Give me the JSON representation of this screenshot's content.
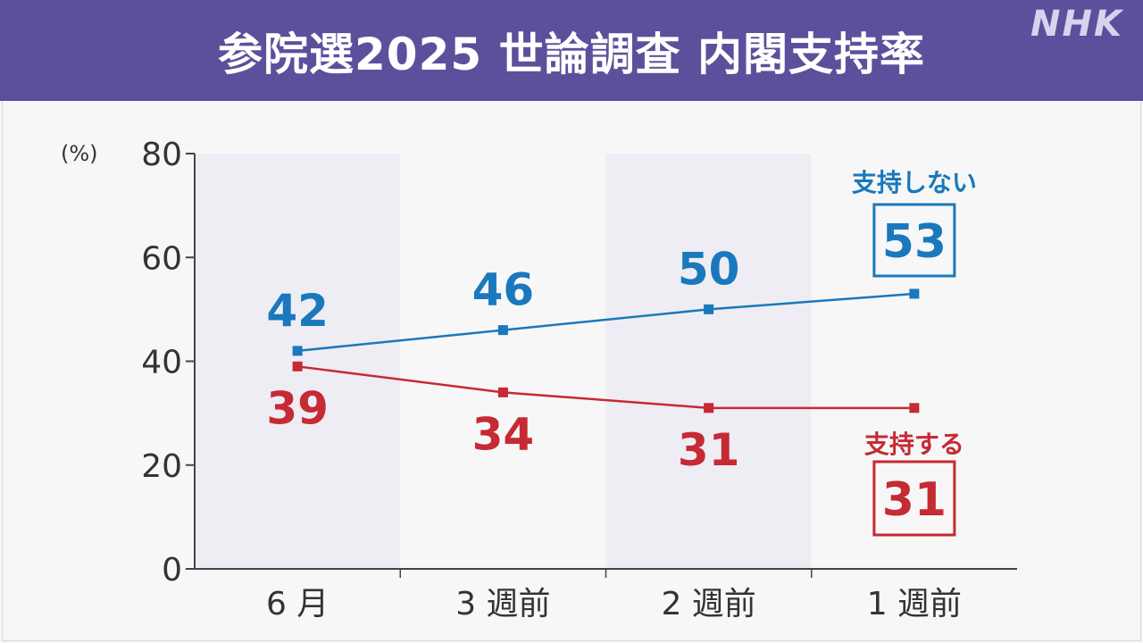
{
  "header": {
    "title": "参院選2025 世論調査 内閣支持率",
    "logo": "NHK"
  },
  "colors": {
    "banner": "#5e4f9c",
    "support": "#c62a33",
    "nonsupport": "#1a78bd",
    "band": "#eeedf4"
  },
  "chart_data": {
    "type": "line",
    "ylabel": "(%)",
    "ylim": [
      0,
      80
    ],
    "yticks": [
      "0",
      "20",
      "40",
      "60",
      "80"
    ],
    "categories": [
      "6 月",
      "3 週前",
      "2 週前",
      "1 週前"
    ],
    "series": [
      {
        "name": "支持しない",
        "values": [
          42,
          46,
          50,
          53
        ],
        "latest": "53"
      },
      {
        "name": "支持する",
        "values": [
          39,
          34,
          31,
          31
        ],
        "latest": "31"
      }
    ]
  }
}
